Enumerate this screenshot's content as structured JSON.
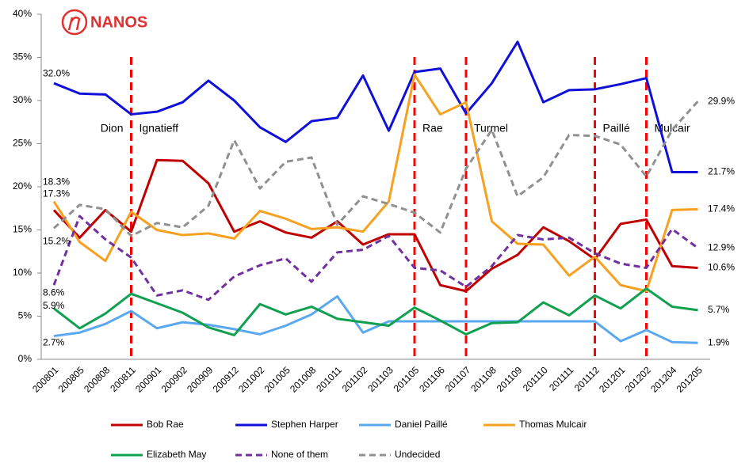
{
  "chart_data": {
    "type": "line",
    "logo": "NANOS",
    "categories": [
      "200801",
      "200805",
      "200808",
      "200811",
      "200901",
      "200902",
      "200909",
      "200912",
      "201002",
      "201005",
      "201008",
      "201011",
      "201102",
      "201103",
      "201105",
      "201106",
      "201107",
      "201108",
      "201109",
      "201110",
      "201111",
      "201112",
      "201201",
      "201202",
      "201204",
      "201205"
    ],
    "ylim": [
      0,
      40
    ],
    "yticks": [
      {
        "value": 0,
        "label": "0%"
      },
      {
        "value": 5,
        "label": "5%"
      },
      {
        "value": 10,
        "label": "10%"
      },
      {
        "value": 15,
        "label": "15%"
      },
      {
        "value": 20,
        "label": "20%"
      },
      {
        "value": 25,
        "label": "25%"
      },
      {
        "value": 30,
        "label": "30%"
      },
      {
        "value": 35,
        "label": "35%"
      },
      {
        "value": 40,
        "label": "40%"
      }
    ],
    "series": [
      {
        "name": "Bob Rae",
        "color": "#c00000",
        "dash": false,
        "values": [
          17.3,
          14.1,
          17.3,
          14.8,
          23.1,
          23.0,
          20.4,
          14.8,
          16.0,
          14.7,
          14.1,
          16.0,
          13.3,
          14.5,
          14.5,
          8.6,
          7.9,
          10.5,
          12.1,
          15.3,
          13.7,
          11.6,
          15.7,
          16.2,
          10.8,
          10.6
        ],
        "value_labels": [
          "17.3%",
          null,
          null,
          null,
          null,
          null,
          null,
          null,
          null,
          null,
          null,
          null,
          null,
          null,
          null,
          null,
          null,
          null,
          null,
          null,
          null,
          null,
          null,
          null,
          null,
          "10.6%"
        ]
      },
      {
        "name": "Stephen Harper",
        "color": "#1010d8",
        "dash": false,
        "values": [
          32.0,
          30.8,
          30.7,
          28.4,
          28.7,
          29.8,
          32.3,
          30.0,
          26.9,
          25.2,
          27.6,
          28.0,
          32.9,
          26.5,
          33.3,
          33.7,
          28.5,
          32.0,
          36.8,
          29.8,
          31.2,
          31.3,
          31.9,
          32.6,
          21.7,
          21.7
        ],
        "value_labels": [
          "32.0%",
          null,
          null,
          null,
          null,
          null,
          null,
          null,
          null,
          null,
          null,
          null,
          null,
          null,
          null,
          null,
          null,
          null,
          null,
          null,
          null,
          null,
          null,
          null,
          null,
          "21.7%"
        ]
      },
      {
        "name": "Daniel Paillé",
        "color": "#5aa8f0",
        "dash": false,
        "values": [
          2.7,
          3.1,
          4.1,
          5.6,
          3.6,
          4.3,
          4.0,
          3.5,
          2.9,
          3.9,
          5.2,
          7.3,
          3.1,
          4.4,
          4.4,
          4.4,
          4.4,
          4.4,
          4.4,
          4.4,
          4.4,
          4.4,
          2.1,
          3.4,
          2.0,
          1.9
        ],
        "value_labels": [
          "2.7%",
          null,
          null,
          null,
          null,
          null,
          null,
          null,
          null,
          null,
          null,
          null,
          null,
          null,
          null,
          null,
          null,
          null,
          null,
          null,
          null,
          null,
          null,
          null,
          null,
          "1.9%"
        ]
      },
      {
        "name": "Thomas Mulcair",
        "color": "#f8a020",
        "dash": false,
        "values": [
          18.3,
          13.6,
          11.4,
          17.1,
          15.0,
          14.4,
          14.6,
          14.0,
          17.2,
          16.3,
          15.1,
          15.3,
          14.8,
          18.3,
          33.0,
          28.4,
          29.8,
          16.0,
          13.4,
          13.3,
          9.7,
          11.9,
          8.6,
          7.9,
          17.3,
          17.4
        ],
        "value_labels": [
          "18.3%",
          null,
          null,
          null,
          null,
          null,
          null,
          null,
          null,
          null,
          null,
          null,
          null,
          null,
          null,
          null,
          null,
          null,
          null,
          null,
          null,
          null,
          null,
          null,
          null,
          "17.4%"
        ]
      },
      {
        "name": "Elizabeth May",
        "color": "#10a050",
        "dash": false,
        "values": [
          5.9,
          3.6,
          5.3,
          7.6,
          6.5,
          5.4,
          3.7,
          2.8,
          6.4,
          5.2,
          6.1,
          4.7,
          4.3,
          3.9,
          6.0,
          4.5,
          2.9,
          4.2,
          4.3,
          6.6,
          5.1,
          7.4,
          5.9,
          8.2,
          6.1,
          5.7
        ],
        "value_labels": [
          "5.9%",
          null,
          null,
          null,
          null,
          null,
          null,
          null,
          null,
          null,
          null,
          null,
          null,
          null,
          null,
          null,
          null,
          null,
          null,
          null,
          null,
          null,
          null,
          null,
          null,
          "5.7%"
        ]
      },
      {
        "name": "None of them",
        "color": "#7030a0",
        "dash": true,
        "values": [
          8.6,
          16.6,
          13.9,
          11.8,
          7.4,
          8.0,
          6.9,
          9.6,
          10.9,
          11.7,
          9.0,
          12.4,
          12.7,
          14.3,
          10.6,
          10.3,
          8.4,
          10.8,
          14.4,
          13.9,
          14.1,
          12.3,
          11.1,
          10.6,
          15.1,
          12.9
        ],
        "value_labels": [
          "8.6%",
          null,
          null,
          null,
          null,
          null,
          null,
          null,
          null,
          null,
          null,
          null,
          null,
          null,
          null,
          null,
          null,
          null,
          null,
          null,
          null,
          null,
          null,
          null,
          null,
          "12.9%"
        ]
      },
      {
        "name": "Undecided",
        "color": "#909090",
        "dash": true,
        "values": [
          15.2,
          17.9,
          17.4,
          14.3,
          15.8,
          15.3,
          17.8,
          25.4,
          19.8,
          22.9,
          23.4,
          15.6,
          18.9,
          18.0,
          17.0,
          14.7,
          22.1,
          26.6,
          18.9,
          21.1,
          26.0,
          25.9,
          24.9,
          21.2,
          26.6,
          29.9
        ],
        "value_labels": [
          "15.2%",
          null,
          null,
          null,
          null,
          null,
          null,
          null,
          null,
          null,
          null,
          null,
          null,
          null,
          null,
          null,
          null,
          null,
          null,
          null,
          null,
          null,
          null,
          null,
          null,
          "29.9%"
        ]
      }
    ],
    "annotations": [
      {
        "at": "200811",
        "label": "Dion"
      },
      {
        "at": "200811",
        "label": "Ignatieff"
      },
      {
        "at": "201105",
        "label": "Rae"
      },
      {
        "at": "201107",
        "label": "Turmel"
      },
      {
        "at": "201112",
        "label": "Paillé"
      },
      {
        "at": "201202",
        "label": "Mulcair"
      }
    ]
  }
}
